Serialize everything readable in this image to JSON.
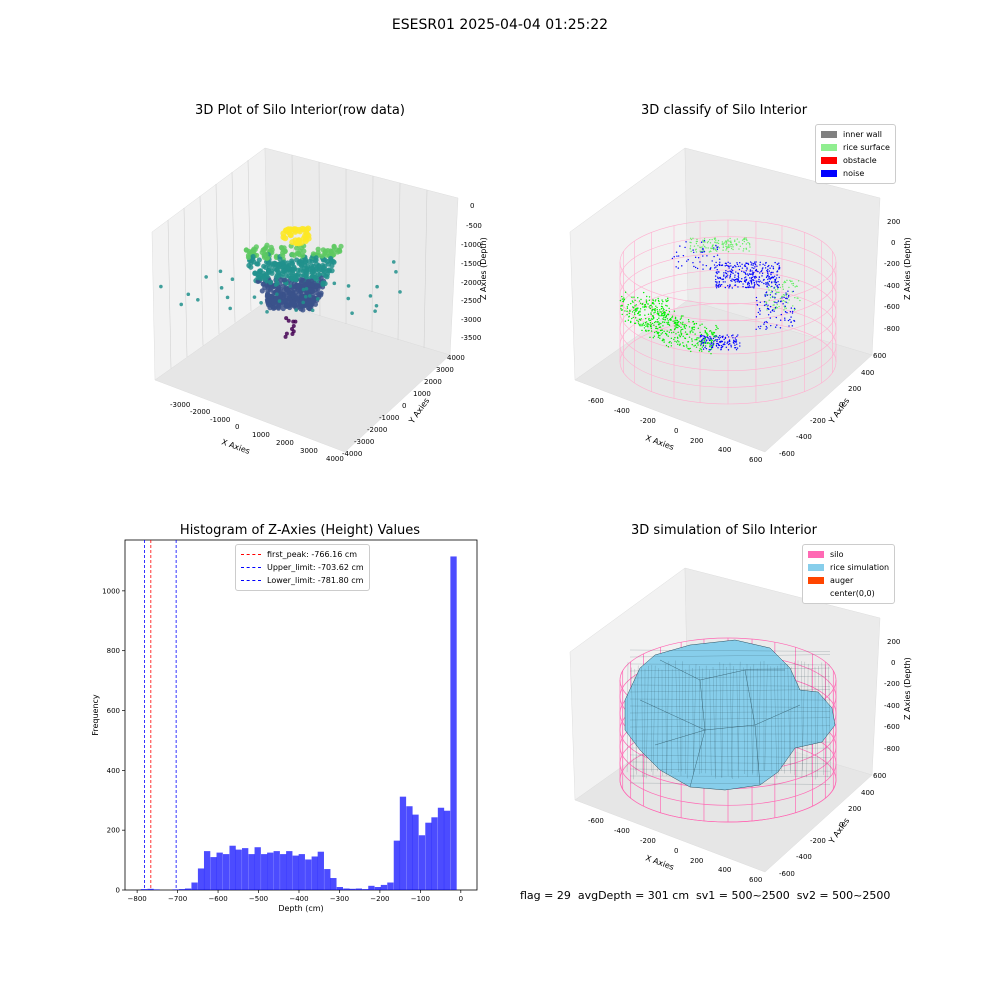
{
  "suptitle": "ESESR01 2025-04-04 01:25:22",
  "footer_text": "flag = 29  avgDepth = 301 cm  sv1 = 500~2500  sv2 = 500~2500",
  "chart_data": [
    {
      "type": "scatter3d",
      "title": "3D Plot of Silo Interior(row data)",
      "xlabel": "X Axies",
      "ylabel": "Y Axies",
      "zlabel": "Z Axies (Depth)",
      "x_ticks": [
        "-3000",
        "-2000",
        "-1000",
        "0",
        "1000",
        "2000",
        "3000",
        "4000"
      ],
      "y_ticks": [
        "4000",
        "3000",
        "2000",
        "1000",
        "0",
        "-1000",
        "-2000",
        "-3000",
        "-4000"
      ],
      "z_ticks": [
        "0",
        "-500",
        "-1000",
        "-1500",
        "-2000",
        "-2500",
        "-3000",
        "-3500"
      ],
      "colormap": "viridis"
    },
    {
      "type": "scatter3d",
      "title": "3D classify of Silo Interior",
      "xlabel": "X Axies",
      "ylabel": "Y Axies",
      "zlabel": "Z Axies (Depth)",
      "x_ticks": [
        "-600",
        "-400",
        "-200",
        "0",
        "200",
        "400",
        "600"
      ],
      "y_ticks": [
        "600",
        "400",
        "200",
        "0",
        "-200",
        "-400",
        "-600"
      ],
      "z_ticks": [
        "200",
        "0",
        "-200",
        "-400",
        "-600",
        "-800"
      ],
      "legend": [
        {
          "label": "inner wall",
          "color": "#808080"
        },
        {
          "label": "rice surface",
          "color": "#90ee90"
        },
        {
          "label": "obstacle",
          "color": "#ff0000"
        },
        {
          "label": "noise",
          "color": "#0000ff"
        }
      ],
      "legend_position": "top-right"
    },
    {
      "type": "bar",
      "title": "Histogram of Z-Axies (Height) Values",
      "xlabel": "Depth (cm)",
      "ylabel": "Frequency",
      "xlim": [
        -830,
        40
      ],
      "ylim": [
        0,
        1170
      ],
      "x_ticks": [
        -800,
        -700,
        -600,
        -500,
        -400,
        -300,
        -200,
        -100,
        0
      ],
      "y_ticks": [
        0,
        200,
        400,
        600,
        800,
        1000
      ],
      "bin_width": 15.6,
      "bar_color": "#0000ff",
      "bins": [
        {
          "x": -783,
          "y": 3
        },
        {
          "x": -767,
          "y": 4
        },
        {
          "x": -752,
          "y": 2
        },
        {
          "x": -736,
          "y": 0
        },
        {
          "x": -720,
          "y": 0
        },
        {
          "x": -705,
          "y": 2
        },
        {
          "x": -689,
          "y": 3
        },
        {
          "x": -674,
          "y": 5
        },
        {
          "x": -658,
          "y": 25
        },
        {
          "x": -642,
          "y": 72
        },
        {
          "x": -627,
          "y": 130
        },
        {
          "x": -611,
          "y": 110
        },
        {
          "x": -596,
          "y": 125
        },
        {
          "x": -580,
          "y": 120
        },
        {
          "x": -564,
          "y": 148
        },
        {
          "x": -549,
          "y": 135
        },
        {
          "x": -533,
          "y": 140
        },
        {
          "x": -517,
          "y": 120
        },
        {
          "x": -502,
          "y": 143
        },
        {
          "x": -486,
          "y": 120
        },
        {
          "x": -471,
          "y": 125
        },
        {
          "x": -455,
          "y": 130
        },
        {
          "x": -439,
          "y": 120
        },
        {
          "x": -424,
          "y": 130
        },
        {
          "x": -408,
          "y": 115
        },
        {
          "x": -393,
          "y": 120
        },
        {
          "x": -377,
          "y": 102
        },
        {
          "x": -361,
          "y": 112
        },
        {
          "x": -346,
          "y": 128
        },
        {
          "x": -330,
          "y": 70
        },
        {
          "x": -315,
          "y": 40
        },
        {
          "x": -299,
          "y": 10
        },
        {
          "x": -283,
          "y": 5
        },
        {
          "x": -268,
          "y": 4
        },
        {
          "x": -252,
          "y": 5
        },
        {
          "x": -236,
          "y": 3
        },
        {
          "x": -221,
          "y": 14
        },
        {
          "x": -205,
          "y": 10
        },
        {
          "x": -190,
          "y": 17
        },
        {
          "x": -174,
          "y": 25
        },
        {
          "x": -158,
          "y": 165
        },
        {
          "x": -143,
          "y": 312
        },
        {
          "x": -127,
          "y": 280
        },
        {
          "x": -112,
          "y": 252
        },
        {
          "x": -96,
          "y": 183
        },
        {
          "x": -80,
          "y": 225
        },
        {
          "x": -65,
          "y": 243
        },
        {
          "x": -49,
          "y": 275
        },
        {
          "x": -34,
          "y": 265
        },
        {
          "x": -18,
          "y": 1115
        }
      ],
      "vlines": [
        {
          "label": "first_peak: -766.16 cm",
          "x": -766.16,
          "color": "#ff0000"
        },
        {
          "label": "Upper_limit: -703.62 cm",
          "x": -703.62,
          "color": "#0000ff"
        },
        {
          "label": "Lower_limit: -781.80 cm",
          "x": -781.8,
          "color": "#0000ff"
        }
      ],
      "legend_position": "top-center"
    },
    {
      "type": "surface3d",
      "title": "3D simulation of Silo Interior",
      "xlabel": "X Axies",
      "ylabel": "Y Axies",
      "zlabel": "Z Axies (Depth)",
      "x_ticks": [
        "-600",
        "-400",
        "-200",
        "0",
        "200",
        "400",
        "600"
      ],
      "y_ticks": [
        "600",
        "400",
        "200",
        "0",
        "-200",
        "-400",
        "-600"
      ],
      "z_ticks": [
        "200",
        "0",
        "-200",
        "-400",
        "-600",
        "-800"
      ],
      "legend": [
        {
          "label": "silo",
          "color": "#ff69b4"
        },
        {
          "label": "rice simulation",
          "color": "#87ceeb"
        },
        {
          "label": "auger",
          "color": "#ff4500"
        },
        {
          "label": "center(0,0)",
          "color": "#ffffff"
        }
      ],
      "legend_position": "top-right"
    }
  ]
}
